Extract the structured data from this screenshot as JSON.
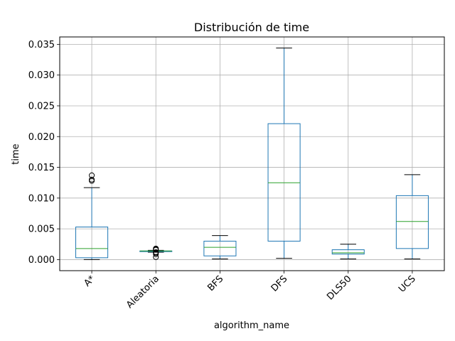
{
  "chart_data": {
    "type": "box",
    "title": "Distribución de time",
    "xlabel": "algorithm_name",
    "ylabel": "time",
    "ylim": [
      -0.0018,
      0.0362
    ],
    "yticks": [
      "0.000",
      "0.005",
      "0.010",
      "0.015",
      "0.020",
      "0.025",
      "0.030",
      "0.035"
    ],
    "ytick_values": [
      0,
      0.005,
      0.01,
      0.015,
      0.02,
      0.025,
      0.03,
      0.035
    ],
    "grid": true,
    "categories": [
      "A*",
      "Aleatoria",
      "BFS",
      "DFS",
      "DLS50",
      "UCS"
    ],
    "boxes": [
      {
        "whisker_low": 0.0,
        "q1": 0.0003,
        "median": 0.0018,
        "q3": 0.0053,
        "whisker_high": 0.0117,
        "outliers": [
          0.0128,
          0.013,
          0.0137
        ]
      },
      {
        "whisker_low": 0.0012,
        "q1": 0.0013,
        "median": 0.0014,
        "q3": 0.0014,
        "whisker_high": 0.0015,
        "outliers": [
          0.0004,
          0.0009,
          0.0011,
          0.0012,
          0.0016,
          0.0017,
          0.0018
        ]
      },
      {
        "whisker_low": 0.0001,
        "q1": 0.0006,
        "median": 0.002,
        "q3": 0.003,
        "whisker_high": 0.0039,
        "outliers": []
      },
      {
        "whisker_low": 0.0002,
        "q1": 0.003,
        "median": 0.0125,
        "q3": 0.0221,
        "whisker_high": 0.0344,
        "outliers": []
      },
      {
        "whisker_low": 0.0001,
        "q1": 0.0009,
        "median": 0.0011,
        "q3": 0.0016,
        "whisker_high": 0.0025,
        "outliers": []
      },
      {
        "whisker_low": 0.0001,
        "q1": 0.0018,
        "median": 0.0062,
        "q3": 0.0104,
        "whisker_high": 0.0138,
        "outliers": []
      }
    ],
    "colors": {
      "box": "#1f77b4",
      "median": "#2ca02c",
      "grid": "#b0b0b0",
      "outlier": "#000000",
      "whisker_cap": "#000000"
    }
  }
}
